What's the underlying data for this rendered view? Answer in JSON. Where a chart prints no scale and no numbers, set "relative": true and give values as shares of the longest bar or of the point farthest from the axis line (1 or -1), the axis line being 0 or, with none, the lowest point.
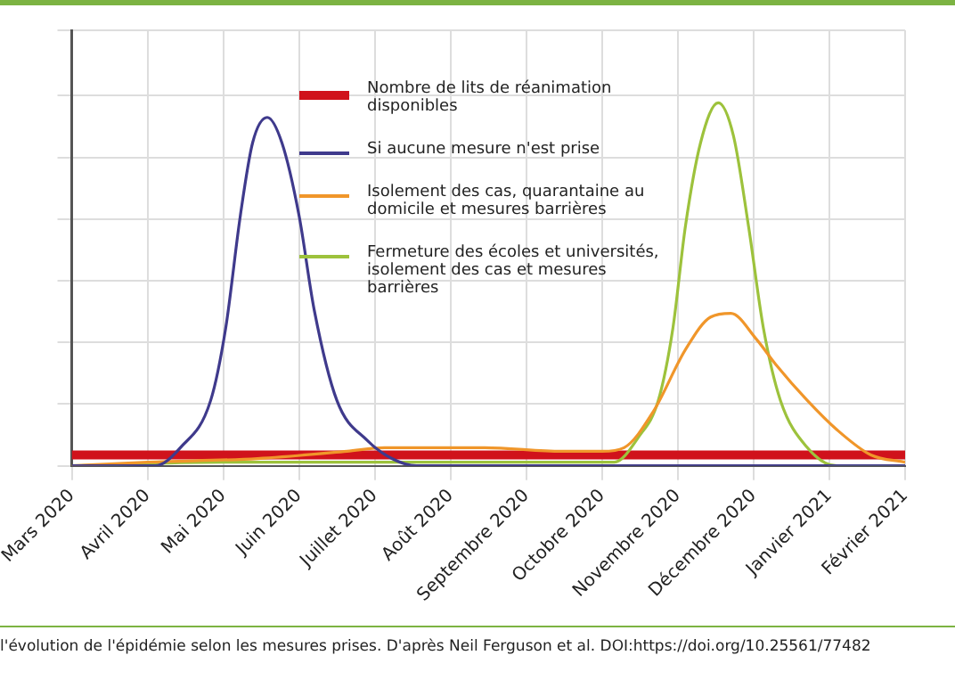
{
  "chart_data": {
    "type": "line",
    "relative": true,
    "grid": true,
    "legend": "top right",
    "marker": "none",
    "line_style": "solid",
    "xlim": [
      "2020-03-01",
      "2021-02-01"
    ],
    "xticks": [
      {
        "value": "2020-03-01",
        "label": "Mars 2020"
      },
      {
        "value": "2020-04-01",
        "label": "Avril 2020"
      },
      {
        "value": "2020-05-01",
        "label": "Mai 2020"
      },
      {
        "value": "2020-06-01",
        "label": "Juin 2020"
      },
      {
        "value": "2020-07-01",
        "label": "Juillet 2020"
      },
      {
        "value": "2020-08-01",
        "label": "Août 2020"
      },
      {
        "value": "2020-09-01",
        "label": "Septembre 2020"
      },
      {
        "value": "2020-10-01",
        "label": "Octobre 2020"
      },
      {
        "value": "2020-11-01",
        "label": "Novembre 2020"
      },
      {
        "value": "2020-12-01",
        "label": "Décembre 2020"
      },
      {
        "value": "2021-01-01",
        "label": "Janvier 2021"
      },
      {
        "value": "2021-02-01",
        "label": "Février 2021"
      }
    ],
    "series": [
      {
        "name": "Nombre de lits de réanimation disponibles",
        "color": "#d0121b",
        "x": [
          "2020-03-01",
          "2021-02-01"
        ],
        "values": [
          0.03,
          0.03
        ]
      },
      {
        "name": "Si aucune mesure n'est prise",
        "color": "#3f3a8c",
        "x": [
          "2020-03-01",
          "2020-04-04",
          "2020-04-14",
          "2020-04-26",
          "2020-05-02",
          "2020-05-08",
          "2020-05-13",
          "2020-05-19",
          "2020-05-25",
          "2020-06-01",
          "2020-06-07",
          "2020-06-16",
          "2020-06-28",
          "2020-07-08",
          "2020-07-18",
          "2021-02-01"
        ],
        "values": [
          0,
          0,
          0.05,
          0.18,
          0.38,
          0.69,
          0.89,
          0.96,
          0.89,
          0.69,
          0.43,
          0.18,
          0.07,
          0.02,
          0,
          0
        ]
      },
      {
        "name": "Isolement des cas, quarantaine au domicile et mesures barrières",
        "color": "#f0962a",
        "x": [
          "2020-03-01",
          "2020-04-01",
          "2020-05-15",
          "2020-06-20",
          "2020-07-05",
          "2020-08-15",
          "2020-09-15",
          "2020-10-01",
          "2020-10-10",
          "2020-10-22",
          "2020-11-04",
          "2020-11-14",
          "2020-11-22",
          "2020-12-02",
          "2020-12-10",
          "2020-12-23",
          "2021-01-04",
          "2021-01-18",
          "2021-02-01"
        ],
        "values": [
          0,
          0.01,
          0.02,
          0.04,
          0.05,
          0.05,
          0.04,
          0.04,
          0.05,
          0.15,
          0.32,
          0.41,
          0.42,
          0.35,
          0.28,
          0.18,
          0.1,
          0.03,
          0.01
        ]
      },
      {
        "name": "Fermeture des écoles et universités, isolement des cas et mesures barrières",
        "color": "#9dc23c",
        "x": [
          "2020-03-01",
          "2020-05-01",
          "2020-10-01",
          "2020-10-06",
          "2020-10-16",
          "2020-10-24",
          "2020-10-30",
          "2020-11-04",
          "2020-11-10",
          "2020-11-17",
          "2020-11-23",
          "2020-11-29",
          "2020-12-05",
          "2020-12-12",
          "2020-12-23",
          "2021-01-04",
          "2021-02-01"
        ],
        "values": [
          0,
          0.01,
          0.01,
          0.01,
          0.08,
          0.18,
          0.38,
          0.66,
          0.89,
          1,
          0.91,
          0.66,
          0.38,
          0.18,
          0.05,
          0,
          0
        ]
      }
    ],
    "annotations": [
      "l'évolution de l'épidémie selon les mesures prises. D'après Neil Ferguson et al. DOI:https://doi.org/10.25561/77482"
    ]
  }
}
